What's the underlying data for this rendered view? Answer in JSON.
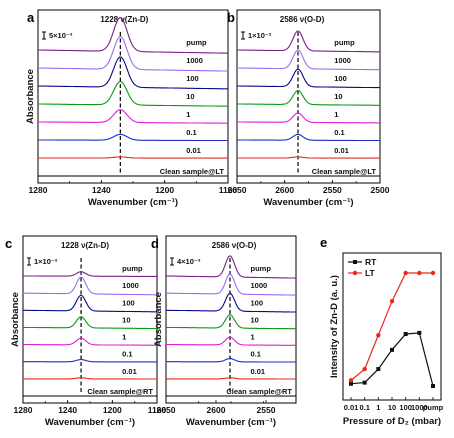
{
  "chart_data": [
    {
      "panel": "a",
      "type": "line",
      "peak_label": "1228 ν(Zn-D)",
      "scale_bar": "5×10⁻³",
      "ylabel": "Absorbance",
      "xlabel": "Wavenumber (cm⁻¹)",
      "xticks": [
        "1280",
        "1240",
        "1200",
        "1160"
      ],
      "xlim": [
        1280,
        1160
      ],
      "peak_x": 1228,
      "series": [
        {
          "name": "Clean sample@LT",
          "color": "#000000",
          "amp": 0
        },
        {
          "name": "0.01",
          "color": "#e8291c",
          "amp": 0.05
        },
        {
          "name": "0.1",
          "color": "#1a2fc2",
          "amp": 0.25
        },
        {
          "name": "1",
          "color": "#e21fd6",
          "amp": 0.55
        },
        {
          "name": "10",
          "color": "#0c9a16",
          "amp": 1.0
        },
        {
          "name": "100",
          "color": "#0a0a8c",
          "amp": 1.3
        },
        {
          "name": "1000",
          "color": "#9c6cf0",
          "amp": 1.4
        },
        {
          "name": "pump",
          "color": "#7b1f8a",
          "amp": 1.45
        }
      ]
    },
    {
      "panel": "b",
      "type": "line",
      "peak_label": "2586 ν(O-D)",
      "scale_bar": "1×10⁻²",
      "xlabel": "Wavenumber (cm⁻¹)",
      "xticks": [
        "2650",
        "2600",
        "2550",
        "2500"
      ],
      "xlim": [
        2650,
        2500
      ],
      "peak_x": 2586,
      "series": [
        {
          "name": "Clean sample@LT",
          "color": "#000000",
          "amp": 0
        },
        {
          "name": "0.01",
          "color": "#e8291c",
          "amp": 0.05
        },
        {
          "name": "0.1",
          "color": "#1a2fc2",
          "amp": 0.25
        },
        {
          "name": "1",
          "color": "#e21fd6",
          "amp": 0.4
        },
        {
          "name": "10",
          "color": "#0c9a16",
          "amp": 0.6
        },
        {
          "name": "100",
          "color": "#0a0a8c",
          "amp": 0.75
        },
        {
          "name": "1000",
          "color": "#9c6cf0",
          "amp": 0.8
        },
        {
          "name": "pump",
          "color": "#7b1f8a",
          "amp": 0.85
        }
      ]
    },
    {
      "panel": "c",
      "type": "line",
      "peak_label": "1228 ν(Zn-D)",
      "scale_bar": "1×10⁻²",
      "ylabel": "Absorbance",
      "xlabel": "Wavenumber (cm⁻¹)",
      "xticks": [
        "1280",
        "1240",
        "1200",
        "1160"
      ],
      "xlim": [
        1280,
        1160
      ],
      "peak_x": 1228,
      "series": [
        {
          "name": "Clean sample@RT",
          "color": "#000000",
          "amp": 0
        },
        {
          "name": "0.01",
          "color": "#e8291c",
          "amp": 0.05
        },
        {
          "name": "0.1",
          "color": "#1a2fc2",
          "amp": 0.1
        },
        {
          "name": "1",
          "color": "#e21fd6",
          "amp": 0.3
        },
        {
          "name": "10",
          "color": "#0c9a16",
          "amp": 0.5
        },
        {
          "name": "100",
          "color": "#0a0a8c",
          "amp": 0.7
        },
        {
          "name": "1000",
          "color": "#9c6cf0",
          "amp": 0.75
        },
        {
          "name": "pump",
          "color": "#7b1f8a",
          "amp": 0.2
        }
      ]
    },
    {
      "panel": "d",
      "type": "line",
      "peak_label": "2586 ν(O-D)",
      "scale_bar": "4×10⁻³",
      "ylabel": "Absorbance",
      "xlabel": "Wavenumber (cm⁻¹)",
      "xticks": [
        "2650",
        "2600",
        "2550"
      ],
      "xlim": [
        2650,
        2520
      ],
      "peak_x": 2586,
      "series": [
        {
          "name": "Clean sample@RT",
          "color": "#000000",
          "amp": 0
        },
        {
          "name": "0.01",
          "color": "#e8291c",
          "amp": 0.05
        },
        {
          "name": "0.1",
          "color": "#1a2fc2",
          "amp": 0.15
        },
        {
          "name": "1",
          "color": "#e21fd6",
          "amp": 0.35
        },
        {
          "name": "10",
          "color": "#0c9a16",
          "amp": 0.6
        },
        {
          "name": "100",
          "color": "#0a0a8c",
          "amp": 0.8
        },
        {
          "name": "1000",
          "color": "#9c6cf0",
          "amp": 0.9
        },
        {
          "name": "pump",
          "color": "#7b1f8a",
          "amp": 0.95
        }
      ]
    },
    {
      "panel": "e",
      "type": "line",
      "ylabel": "Intensity of Zn-D (a. u.)",
      "xlabel": "Pressure of D₂ (mbar)",
      "categories": [
        "0.01",
        "0.1",
        "1",
        "10",
        "100",
        "1000",
        "pump"
      ],
      "legend_position": "top-left",
      "series": [
        {
          "name": "RT",
          "color": "#111111",
          "values": [
            0.02,
            0.03,
            0.15,
            0.32,
            0.46,
            0.47,
            0.0
          ]
        },
        {
          "name": "LT",
          "color": "#e8291c",
          "values": [
            0.05,
            0.15,
            0.45,
            0.75,
            1.0,
            1.0,
            1.0
          ]
        }
      ]
    }
  ]
}
